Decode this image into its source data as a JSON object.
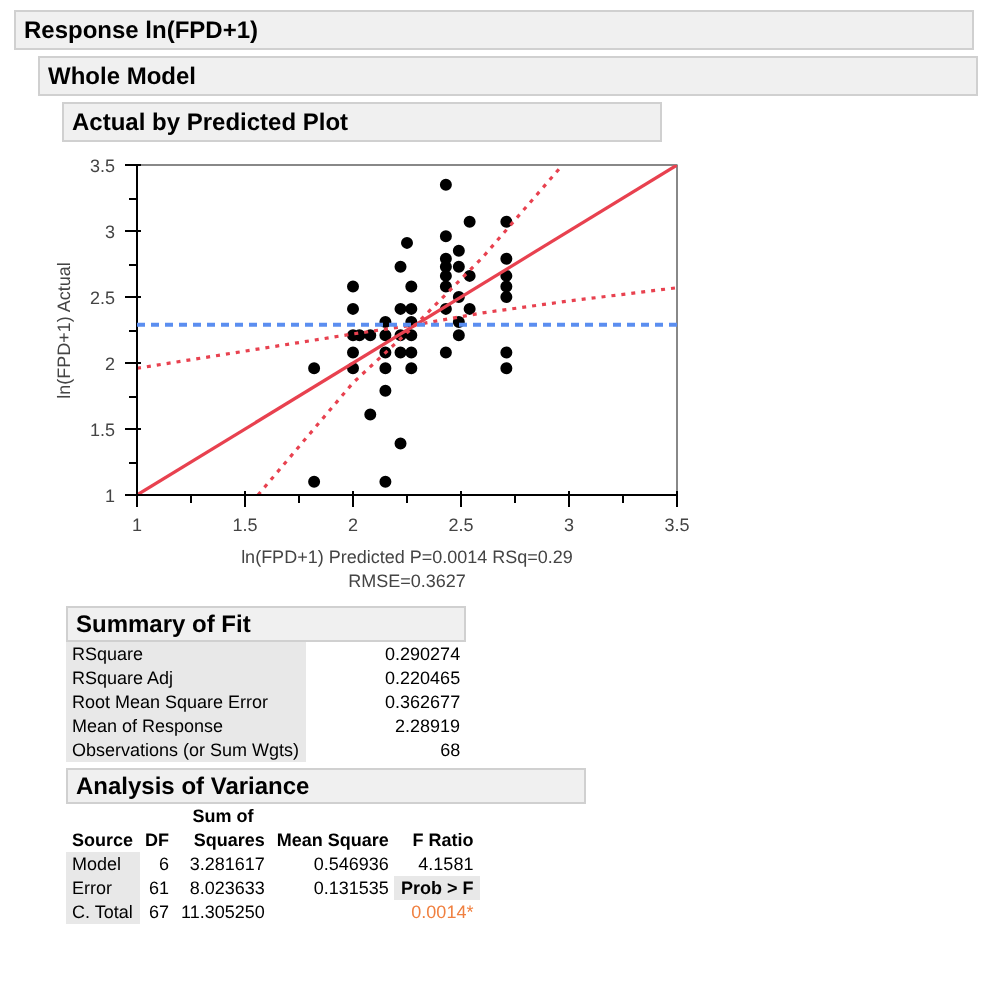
{
  "chart_data": {
    "type": "scatter",
    "title": "Response ln(FPD+1)",
    "subtitle": "Whole Model",
    "xlabel": "ln(FPD+1) Predicted P=0.0014 RSq=0.29\nRMSE=0.3627",
    "ylabel": "ln(FPD+1) Actual",
    "xlim": [
      1,
      3.5
    ],
    "ylim": [
      1,
      3.5
    ],
    "xticks": [
      1,
      1.5,
      2,
      2.5,
      3,
      3.5
    ],
    "yticks": [
      1,
      1.5,
      2,
      2.5,
      3,
      3.5
    ],
    "grid": false,
    "series": [
      {
        "color": "#000000",
        "marker": "circle",
        "x": [
          1.82,
          1.82,
          2.0,
          2.0,
          2.0,
          2.0,
          2.0,
          2.03,
          2.08,
          2.08,
          2.15,
          2.15,
          2.15,
          2.15,
          2.15,
          2.15,
          2.22,
          2.22,
          2.22,
          2.22,
          2.22,
          2.25,
          2.27,
          2.27,
          2.27,
          2.27,
          2.27,
          2.27,
          2.43,
          2.43,
          2.43,
          2.43,
          2.43,
          2.43,
          2.43,
          2.43,
          2.49,
          2.49,
          2.49,
          2.49,
          2.49,
          2.54,
          2.54,
          2.54,
          2.71,
          2.71,
          2.71,
          2.71,
          2.71,
          2.71,
          2.71
        ],
        "values": [
          1.96,
          1.1,
          2.58,
          2.41,
          2.21,
          2.08,
          1.96,
          2.21,
          2.21,
          1.61,
          2.31,
          2.21,
          2.08,
          1.96,
          1.79,
          1.1,
          2.73,
          2.41,
          2.21,
          2.08,
          1.39,
          2.91,
          2.58,
          2.41,
          2.31,
          2.21,
          2.08,
          1.96,
          3.35,
          2.96,
          2.79,
          2.73,
          2.66,
          2.58,
          2.41,
          2.08,
          2.85,
          2.73,
          2.5,
          2.31,
          2.21,
          3.07,
          2.66,
          2.41,
          3.07,
          2.79,
          2.66,
          2.58,
          2.5,
          2.08,
          1.96
        ]
      },
      {
        "type": "line",
        "color": "#e8414f",
        "line_style": "solid",
        "x": [
          1,
          3.5
        ],
        "values": [
          1,
          3.5
        ]
      },
      {
        "type": "line",
        "color": "#e8414f",
        "line_style": "dotted",
        "x": [
          1,
          1.5,
          2,
          2.29,
          2.6,
          3,
          3.5
        ],
        "values": [
          1.96,
          2.09,
          2.22,
          2.29,
          2.38,
          2.47,
          2.57
        ]
      },
      {
        "type": "line",
        "color": "#e8414f",
        "line_style": "dotted",
        "x": [
          1.56,
          2,
          2.29,
          2.6,
          2.97
        ],
        "values": [
          1.0,
          1.85,
          2.29,
          2.8,
          3.5
        ]
      }
    ],
    "ref_lines": [
      {
        "axis": "y",
        "value": 2.28919,
        "color": "#5b8ef0",
        "line_style": "dashed"
      }
    ],
    "annotations": [
      "Actual by Predicted Plot",
      "Summary of Fit",
      "RSquare",
      "0.290274",
      "RSquare Adj",
      "0.220465",
      "Root Mean Square Error",
      "0.362677",
      "Mean of Response",
      "2.28919",
      "Observations (or Sum Wgts)",
      "68",
      "Analysis of Variance",
      "Sum of",
      "Source",
      "DF",
      "Squares",
      "Mean Square",
      "F Ratio",
      "Model",
      "6",
      "3.281617",
      "0.546936",
      "4.1581",
      "Error",
      "61",
      "8.023633",
      "0.131535",
      "Prob > F",
      "C. Total",
      "67",
      "11.305250",
      "0.0014*"
    ]
  }
}
